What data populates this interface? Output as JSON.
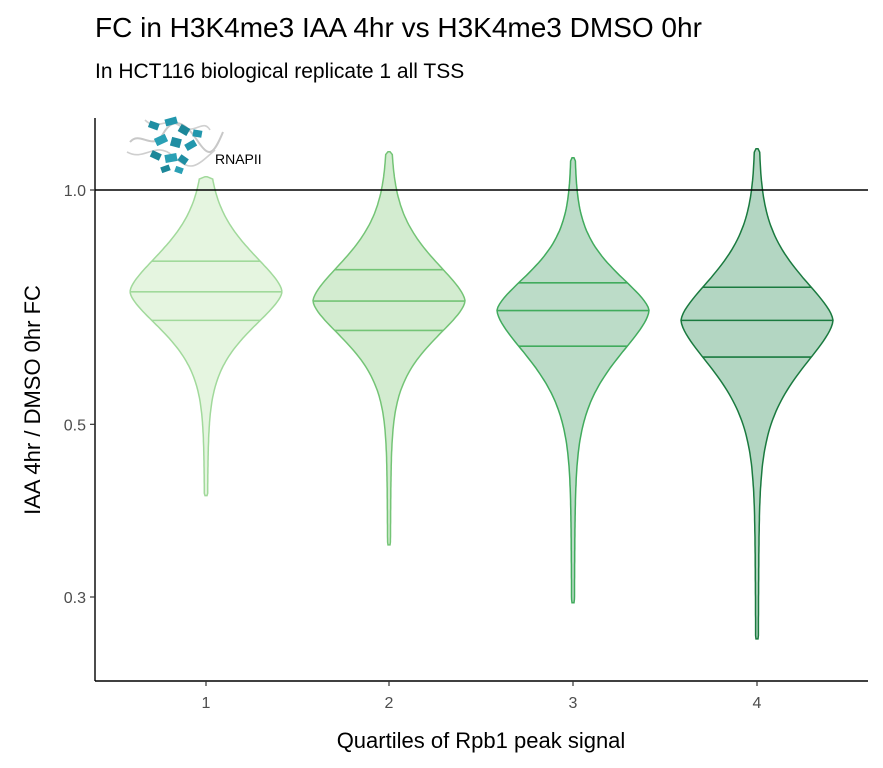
{
  "chart_data": {
    "type": "violin",
    "title": "FC in H3K4me3 IAA 4hr vs H3K4me3 DMSO 0hr",
    "subtitle": "In HCT116 biological replicate 1 all TSS",
    "xlabel": "Quartiles of Rpb1 peak signal",
    "ylabel": "IAA 4hr / DMSO 0hr FC",
    "y_scale": "log",
    "ylim": [
      0.25,
      1.3
    ],
    "y_ticks": [
      "0.3",
      "0.5",
      "1.0"
    ],
    "reference_line": 1.0,
    "logo_label": "RNAPII",
    "categories": [
      "1",
      "2",
      "3",
      "4"
    ],
    "violins": [
      {
        "category": "1",
        "min": 0.405,
        "max": 1.04,
        "q1": 0.68,
        "median": 0.74,
        "q3": 0.81,
        "fill": "#e5f5e0",
        "stroke": "#a1d99b"
      },
      {
        "category": "2",
        "min": 0.35,
        "max": 1.12,
        "q1": 0.66,
        "median": 0.72,
        "q3": 0.79,
        "fill": "#d3ecd0",
        "stroke": "#74c476"
      },
      {
        "category": "3",
        "min": 0.295,
        "max": 1.1,
        "q1": 0.63,
        "median": 0.7,
        "q3": 0.76,
        "fill": "#bcdcc8",
        "stroke": "#41ab5d"
      },
      {
        "category": "4",
        "min": 0.265,
        "max": 1.13,
        "q1": 0.61,
        "median": 0.68,
        "q3": 0.75,
        "fill": "#b3d6c2",
        "stroke": "#1a7a3f"
      }
    ]
  }
}
